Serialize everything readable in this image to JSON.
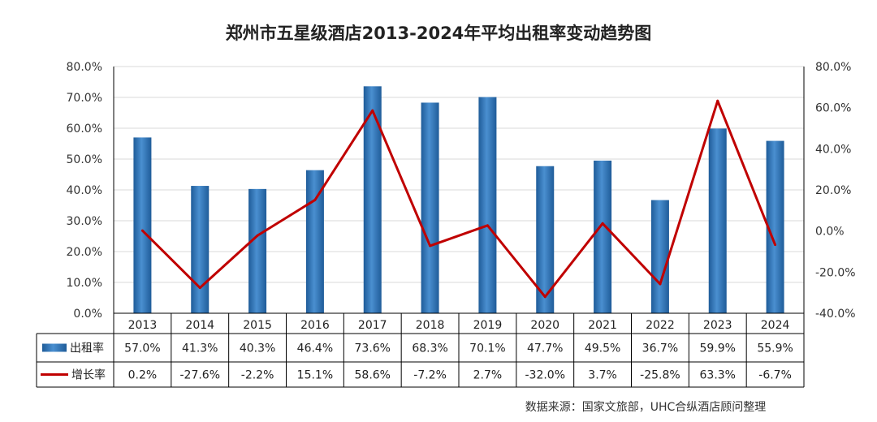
{
  "title": "郑州市五星级酒店2013-2024年平均出租率变动趋势图",
  "source_note": "数据来源：国家文旅部，UHC合纵酒店顾问整理",
  "colors": {
    "bar": "#2E75B6",
    "line": "#C00000",
    "grid": "#D9D9D9",
    "axis": "#000000"
  },
  "chart_data": {
    "type": "bar",
    "categories": [
      "2013",
      "2014",
      "2015",
      "2016",
      "2017",
      "2018",
      "2019",
      "2020",
      "2021",
      "2022",
      "2023",
      "2024"
    ],
    "series": [
      {
        "name": "出租率",
        "type": "bar",
        "axis": "left",
        "values": [
          57.0,
          41.3,
          40.3,
          46.4,
          73.6,
          68.3,
          70.1,
          47.7,
          49.5,
          36.7,
          59.9,
          55.9
        ],
        "labels": [
          "57.0%",
          "41.3%",
          "40.3%",
          "46.4%",
          "73.6%",
          "68.3%",
          "70.1%",
          "47.7%",
          "49.5%",
          "36.7%",
          "59.9%",
          "55.9%"
        ]
      },
      {
        "name": "增长率",
        "type": "line",
        "axis": "right",
        "values": [
          0.2,
          -27.6,
          -2.2,
          15.1,
          58.6,
          -7.2,
          2.7,
          -32.0,
          3.7,
          -25.8,
          63.3,
          -6.7
        ],
        "labels": [
          "0.2%",
          "-27.6%",
          "-2.2%",
          "15.1%",
          "58.6%",
          "-7.2%",
          "2.7%",
          "-32.0%",
          "3.7%",
          "-25.8%",
          "63.3%",
          "-6.7%"
        ]
      }
    ],
    "y_left": {
      "ylim": [
        0,
        80
      ],
      "ticks": [
        "0.0%",
        "10.0%",
        "20.0%",
        "30.0%",
        "40.0%",
        "50.0%",
        "60.0%",
        "70.0%",
        "80.0%"
      ]
    },
    "y_right": {
      "ylim": [
        -40,
        80
      ],
      "ticks": [
        "-40.0%",
        "-20.0%",
        "0.0%",
        "20.0%",
        "40.0%",
        "60.0%",
        "80.0%"
      ]
    },
    "grid": true,
    "legend": "data-table"
  }
}
